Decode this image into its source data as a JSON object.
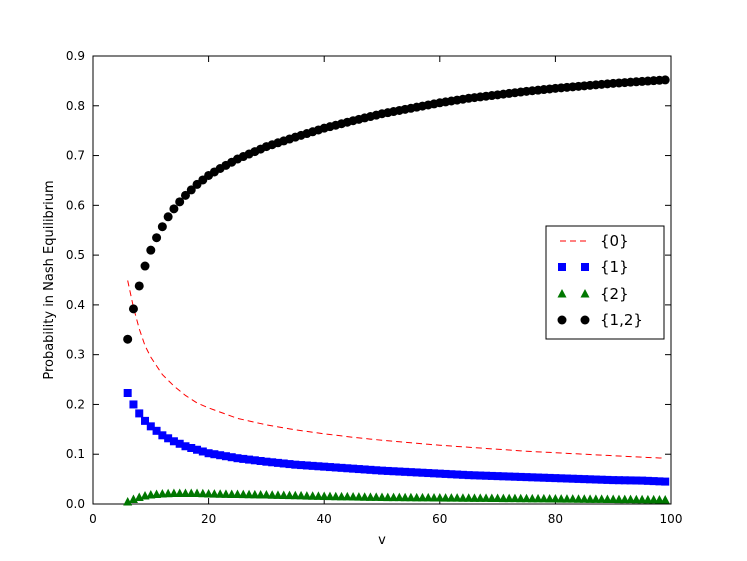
{
  "chart_data": {
    "type": "scatter",
    "title": "",
    "xlabel": "v",
    "ylabel": "Probability in Nash Equilibrium",
    "xlim": [
      0,
      100
    ],
    "ylim": [
      0.0,
      0.9
    ],
    "xticks": [
      "0",
      "20",
      "40",
      "60",
      "80",
      "100"
    ],
    "yticks": [
      "0.0",
      "0.1",
      "0.2",
      "0.3",
      "0.4",
      "0.5",
      "0.6",
      "0.7",
      "0.8",
      "0.9"
    ],
    "grid": false,
    "legend_position": "center-right",
    "x_range": {
      "start": 6,
      "end": 99,
      "step": 1
    },
    "series": [
      {
        "name": "{0}",
        "style": "dashed-line",
        "color": "#ff0000",
        "x_points": [
          6,
          7,
          8,
          9,
          10,
          12,
          14,
          16,
          18,
          20,
          25,
          30,
          35,
          40,
          45,
          50,
          55,
          60,
          65,
          70,
          75,
          80,
          85,
          90,
          95,
          99
        ],
        "values": [
          0.449,
          0.395,
          0.352,
          0.318,
          0.295,
          0.26,
          0.237,
          0.218,
          0.203,
          0.193,
          0.172,
          0.159,
          0.149,
          0.141,
          0.134,
          0.128,
          0.123,
          0.118,
          0.114,
          0.11,
          0.106,
          0.103,
          0.1,
          0.097,
          0.094,
          0.092
        ]
      },
      {
        "name": "{1}",
        "style": "square-markers",
        "color": "#0000ff",
        "x_points": [
          6,
          7,
          8,
          9,
          10,
          12,
          14,
          16,
          18,
          20,
          25,
          30,
          35,
          40,
          45,
          50,
          55,
          60,
          65,
          70,
          75,
          80,
          85,
          90,
          95,
          99
        ],
        "values": [
          0.223,
          0.2,
          0.182,
          0.167,
          0.156,
          0.138,
          0.126,
          0.116,
          0.109,
          0.102,
          0.092,
          0.085,
          0.079,
          0.075,
          0.071,
          0.067,
          0.064,
          0.061,
          0.058,
          0.056,
          0.054,
          0.052,
          0.05,
          0.048,
          0.047,
          0.045
        ]
      },
      {
        "name": "{2}",
        "style": "triangle-markers",
        "color": "#007700",
        "x_points": [
          6,
          7,
          8,
          9,
          10,
          12,
          14,
          16,
          18,
          20,
          25,
          30,
          40,
          50,
          60,
          70,
          80,
          90,
          99
        ],
        "values": [
          0.004,
          0.009,
          0.013,
          0.016,
          0.018,
          0.02,
          0.021,
          0.021,
          0.021,
          0.02,
          0.019,
          0.018,
          0.015,
          0.013,
          0.012,
          0.011,
          0.01,
          0.009,
          0.008
        ]
      },
      {
        "name": "{1,2}",
        "style": "circle-markers",
        "color": "#000000",
        "x_points": [
          6,
          7,
          8,
          9,
          10,
          11,
          12,
          13,
          14,
          15,
          16,
          18,
          20,
          22,
          25,
          30,
          35,
          40,
          45,
          50,
          55,
          60,
          65,
          70,
          75,
          80,
          85,
          90,
          95,
          99
        ],
        "values": [
          0.331,
          0.392,
          0.438,
          0.478,
          0.51,
          0.535,
          0.557,
          0.577,
          0.593,
          0.607,
          0.62,
          0.642,
          0.66,
          0.674,
          0.693,
          0.718,
          0.737,
          0.755,
          0.77,
          0.784,
          0.795,
          0.806,
          0.815,
          0.822,
          0.829,
          0.835,
          0.84,
          0.845,
          0.849,
          0.852
        ]
      }
    ]
  }
}
